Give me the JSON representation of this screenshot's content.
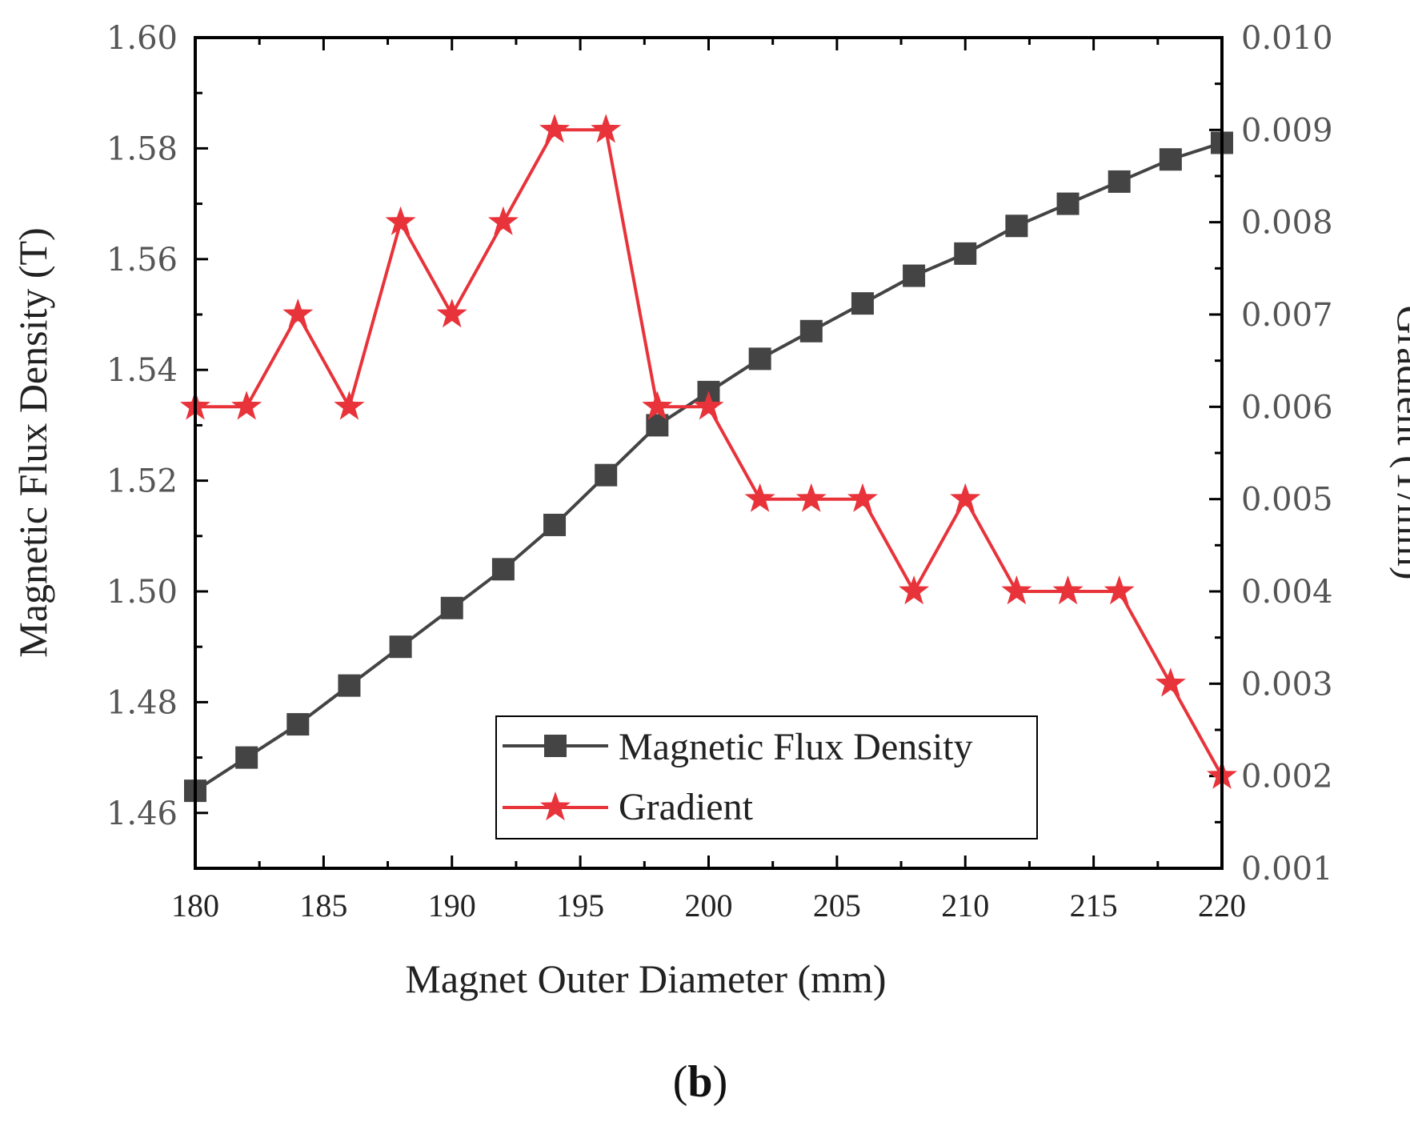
{
  "chart_data": {
    "type": "line",
    "title": "",
    "caption": {
      "open": "(",
      "letter": "b",
      "close": ")"
    },
    "xlabel": "Magnet Outer Diameter (mm)",
    "ylabel_left": "Magnetic Flux Density (T)",
    "ylabel_right": "Gradient (T/mm)",
    "xlim": [
      180,
      220
    ],
    "ylim_left": [
      1.45,
      1.6
    ],
    "ylim_right": [
      0.001,
      0.01
    ],
    "x_ticks": [
      "180",
      "185",
      "190",
      "195",
      "200",
      "205",
      "210",
      "215",
      "220"
    ],
    "x_tick_values": [
      180,
      185,
      190,
      195,
      200,
      205,
      210,
      215,
      220
    ],
    "y_left_ticks": [
      "1.46",
      "1.48",
      "1.50",
      "1.52",
      "1.54",
      "1.56",
      "1.58",
      "1.60"
    ],
    "y_left_tick_values": [
      1.46,
      1.48,
      1.5,
      1.52,
      1.54,
      1.56,
      1.58,
      1.6
    ],
    "y_right_ticks": [
      "0.001",
      "0.002",
      "0.003",
      "0.004",
      "0.005",
      "0.006",
      "0.007",
      "0.008",
      "0.009",
      "0.010"
    ],
    "y_right_tick_values": [
      0.001,
      0.002,
      0.003,
      0.004,
      0.005,
      0.006,
      0.007,
      0.008,
      0.009,
      0.01
    ],
    "legend_position": "bottom-center",
    "series": [
      {
        "name": "Magnetic Flux Density",
        "axis": "left",
        "marker": "square",
        "color": "#444444",
        "x": [
          180,
          182,
          184,
          186,
          188,
          190,
          192,
          194,
          196,
          198,
          200,
          202,
          204,
          206,
          208,
          210,
          212,
          214,
          216,
          218,
          220
        ],
        "values": [
          1.464,
          1.47,
          1.476,
          1.483,
          1.49,
          1.497,
          1.504,
          1.512,
          1.521,
          1.53,
          1.536,
          1.542,
          1.547,
          1.552,
          1.557,
          1.561,
          1.566,
          1.57,
          1.574,
          1.578,
          1.581
        ]
      },
      {
        "name": "Gradient",
        "axis": "right",
        "marker": "star",
        "color": "#e8333a",
        "x": [
          180,
          182,
          184,
          186,
          188,
          190,
          192,
          194,
          196,
          198,
          200,
          202,
          204,
          206,
          208,
          210,
          212,
          214,
          216,
          218,
          220
        ],
        "values": [
          0.006,
          0.006,
          0.007,
          0.006,
          0.008,
          0.007,
          0.008,
          0.009,
          0.009,
          0.006,
          0.006,
          0.005,
          0.005,
          0.005,
          0.004,
          0.005,
          0.004,
          0.004,
          0.004,
          0.003,
          0.002
        ]
      }
    ]
  }
}
